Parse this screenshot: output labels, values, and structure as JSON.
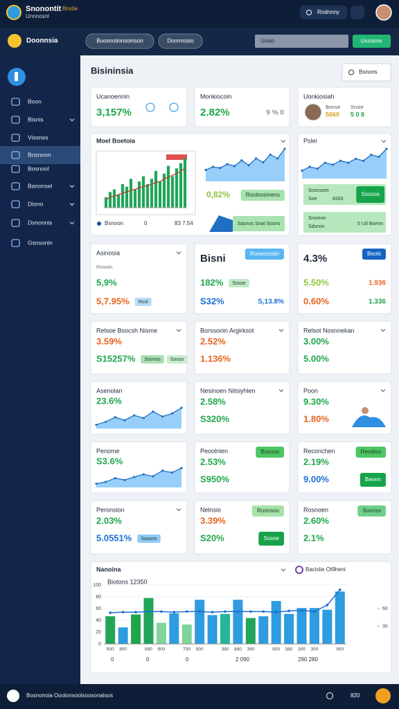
{
  "topbar": {
    "brand": "Snonontit",
    "tag": "Bnstie",
    "subtitle": "Unnnosnl",
    "button": "Rodnnny"
  },
  "navbar": {
    "brand": "Doonnsia",
    "tabs": [
      "Buosnotionsoinson",
      "Doonnosio"
    ],
    "search": "Ussio",
    "action": "Ussosoe"
  },
  "sidebar": {
    "items": [
      {
        "label": "Boon"
      },
      {
        "label": "Bisnis",
        "expand": true
      },
      {
        "label": "Vissnes"
      },
      {
        "label": "Bosnoon",
        "active": true
      },
      {
        "label": "Bosnool"
      },
      {
        "label": "Banonsel",
        "expand": true
      },
      {
        "label": "Diono",
        "expand": true
      },
      {
        "label": "Dsnonnis",
        "expand": true
      },
      {
        "label": "Gsnsonin"
      }
    ]
  },
  "page": {
    "title": "Bisininsia",
    "filter": "Bsnons"
  },
  "cards": [
    {
      "title": "Ucanoennin",
      "stats": [
        {
          "text": "3,157%",
          "color": "#1fa64a"
        }
      ]
    },
    {
      "title": "Monkiocoin",
      "stats": [
        {
          "text": "2.82%",
          "color": "#1fa64a",
          "note": "9 % 0",
          "note_color": "#8a8f98"
        }
      ]
    },
    {
      "title": "Uonkiosiah",
      "details": [
        {
          "label": "Bonse",
          "value": "5060",
          "color": "#d9a21b"
        },
        {
          "label": "Snsie",
          "value": "5 0 8",
          "color": "#1fa64a"
        }
      ]
    },
    {
      "title": "Asinosia",
      "subtitle": "Rosoin",
      "stats": [
        {
          "text": "5,9%",
          "color": "#1fa64a"
        },
        {
          "text": "5,7.95%",
          "color": "#e8641e",
          "tags": [
            {
              "text": "Rosl",
              "color": "#b9dcf7"
            }
          ]
        }
      ]
    },
    {
      "heading": "Bisni",
      "pill": {
        "text": "Ronsonosin",
        "color": "#5bb6f0"
      },
      "stats": [
        {
          "text": "182%",
          "color": "#1fa64a",
          "tags": [
            {
              "text": "Sosse",
              "color": "#bfe8c4"
            }
          ]
        },
        {
          "text": "S32%",
          "color": "#1c6fd1",
          "note": "S,13.8%",
          "note_color": "#1c6fd1"
        }
      ]
    },
    {
      "heading": "4.3%",
      "pill": {
        "text": "Beols",
        "color": "#1565c0"
      },
      "stats": [
        {
          "text": "5.50%",
          "color": "#8cc63f",
          "note": "1.936",
          "note_color": "#e8641e"
        },
        {
          "text": "0.60%",
          "color": "#e8641e",
          "note": "1.336",
          "note_color": "#1fa64a"
        }
      ]
    },
    {
      "title": "Relsoe Bsocsh Nisme",
      "stats": [
        {
          "text": "3.59%",
          "color": "#e8641e"
        },
        {
          "text": "S15257%",
          "color": "#1fa64a",
          "tags": [
            {
              "text": "Ssonos",
              "color": "#a9e0b0"
            },
            {
              "text": "Sosso",
              "color": "#c9ecce"
            }
          ]
        }
      ]
    },
    {
      "title": "Borssonin Argirksot",
      "stats": [
        {
          "text": "2.52%",
          "color": "#e8641e"
        },
        {
          "text": "1.136%",
          "color": "#e8641e"
        }
      ]
    },
    {
      "title": "Relsot Nosnnekan",
      "stats": [
        {
          "text": "3.00%",
          "color": "#1fa64a"
        },
        {
          "text": "5.00%",
          "color": "#1fa64a"
        }
      ]
    },
    {
      "title": "Asenolan",
      "stats": [
        {
          "text": "23.6%",
          "color": "#1fa64a"
        }
      ],
      "spark": {
        "values": [
          10,
          18,
          30,
          22,
          35,
          28,
          45,
          32,
          40,
          55
        ],
        "color": "#42a5f5"
      }
    },
    {
      "title": "Nesinoen Nitsiyhlen",
      "stats": [
        {
          "text": "2.58%",
          "color": "#1fa64a"
        },
        {
          "text": "S320%",
          "color": "#1fa64a"
        }
      ]
    },
    {
      "title": "Poon",
      "stats": [
        {
          "text": "9.30%",
          "color": "#1fa64a"
        },
        {
          "text": "1.80%",
          "color": "#e8641e"
        }
      ]
    },
    {
      "title": "Penome",
      "stats": [
        {
          "text": "S3.6%",
          "color": "#1fa64a"
        }
      ],
      "spark": {
        "values": [
          10,
          15,
          25,
          20,
          28,
          35,
          30,
          45,
          40,
          52
        ],
        "color": "#42a5f5"
      }
    },
    {
      "title": "Peoolnien",
      "pill": {
        "text": "Bosnos",
        "color": "#4cc764"
      },
      "stats": [
        {
          "text": "2.53%",
          "color": "#1fa64a"
        },
        {
          "text": "S950%",
          "color": "#1fa64a"
        }
      ]
    },
    {
      "title": "Reconchen",
      "pill": {
        "text": "Reodios",
        "color": "#4cc764"
      },
      "stats": [
        {
          "text": "2.19%",
          "color": "#1fa64a"
        },
        {
          "text": "9.00%",
          "color": "#1c6fd1",
          "button": {
            "text": "Beonn",
            "color": "#16a34a"
          }
        }
      ]
    },
    {
      "title": "Peronsion",
      "stats": [
        {
          "text": "2.03%",
          "color": "#1fa64a"
        },
        {
          "text": "5.0551%",
          "color": "#1c6fd1",
          "tags": [
            {
              "text": "Sasoos",
              "color": "#90caf9"
            }
          ]
        }
      ]
    },
    {
      "title": "Nelnsio",
      "pill": {
        "text": "Roonsoo",
        "color": "#a5e3a8"
      },
      "stats": [
        {
          "text": "3.39%",
          "color": "#e8641e"
        },
        {
          "text": "S20%",
          "color": "#1fa64a",
          "button": {
            "text": "Sosoe",
            "color": "#16a34a"
          }
        }
      ]
    },
    {
      "title": "Rosnoen",
      "pill": {
        "text": "Soonss",
        "color": "#6fd08a"
      },
      "stats": [
        {
          "text": "2.60%",
          "color": "#1fa64a"
        },
        {
          "text": "2.1%",
          "color": "#1fa64a"
        }
      ]
    }
  ],
  "overview": {
    "title": "Moel Boetoia",
    "bars": {
      "values": [
        20,
        30,
        35,
        25,
        45,
        40,
        55,
        35,
        50,
        60,
        45,
        55,
        70,
        50,
        65,
        80,
        60,
        75,
        85,
        95
      ],
      "color": "#22a559"
    },
    "line": {
      "values": [
        15,
        20,
        22,
        25,
        28,
        30,
        33,
        35,
        38,
        40,
        42,
        45,
        48,
        50,
        55,
        58,
        62,
        65,
        70,
        75
      ],
      "color": "#c0392b"
    },
    "legend": [
      "Bsnoon",
      "0",
      "83 7.54"
    ],
    "area": {
      "values": [
        30,
        38,
        35,
        45,
        40,
        55,
        42,
        60,
        50,
        70,
        60,
        85
      ],
      "color": "#42a5f5"
    },
    "stat": {
      "text": "0,82%",
      "color": "#8cc63f"
    },
    "tag": "Rootnosmens",
    "banner": "Sasnos Snat Soons"
  },
  "sales": {
    "title": "Pslei",
    "area": {
      "values": [
        20,
        30,
        25,
        40,
        35,
        45,
        40,
        50,
        45,
        60,
        55,
        75
      ],
      "color": "#42a5f5"
    },
    "boxes": [
      {
        "label": "Sosnoon",
        "lines": [
          "Soe",
          "8283"
        ],
        "button": "Sosnos"
      },
      {
        "label": "Snoeon",
        "lines": [
          "Sdsnon"
        ],
        "note": "5 Ud Boenn"
      }
    ]
  },
  "trend": {
    "title": "Nanoina",
    "annotation": "Biotons 12350",
    "legend": "Bacislie Ot9heni",
    "categories": [
      "500",
      "800",
      null,
      "890",
      "900",
      null,
      "730",
      "900",
      null,
      "380",
      "880",
      "390",
      null,
      "800",
      "380",
      "300",
      "300",
      null,
      "950"
    ],
    "bars": {
      "values": [
        47,
        28,
        50,
        78,
        36,
        52,
        33,
        75,
        49,
        51,
        75,
        44,
        47,
        73,
        51,
        61,
        61,
        58,
        89
      ],
      "colors": [
        "#22a559",
        "#2f9be0",
        "#1fa64a",
        "#22a559",
        "#7fd49a",
        "#2f9be0",
        "#7fd49a",
        "#2f9be0",
        "#2f9be0",
        "#26b59a",
        "#2f9be0",
        "#22a559",
        "#2f9be0",
        "#2f9be0",
        "#2f9be0",
        "#2f9be0",
        "#2f9be0",
        "#2f9be0",
        "#2f9be0"
      ]
    },
    "line": {
      "values": [
        53,
        54,
        54,
        55,
        55,
        54,
        55,
        55,
        54,
        55,
        55,
        55,
        55,
        54,
        56,
        57,
        55,
        66,
        92
      ],
      "color": "#1c6fd1"
    },
    "ylim": [
      0,
      100
    ],
    "yticks": [
      0,
      20,
      40,
      60,
      80,
      100
    ],
    "y2lim": [
      0,
      100
    ],
    "y2ticks": [
      30,
      60
    ],
    "grid": true,
    "notes": [
      "0",
      "0",
      "0",
      "2 090",
      "290 280"
    ]
  },
  "footer": {
    "text": "Bosnonoia Ooolonsoolsoosonalsos",
    "count": "820"
  }
}
